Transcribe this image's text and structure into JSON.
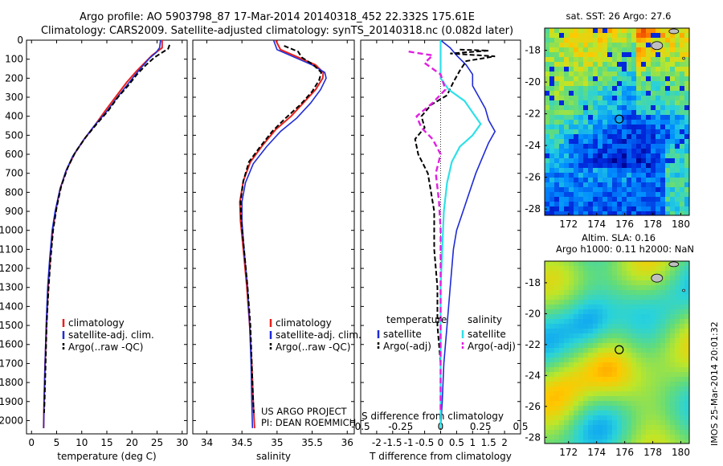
{
  "header": {
    "line1": "Argo profile: AO 5903798_87 17-Mar-2014 20140318_452 22.332S 175.61E",
    "line2": "Climatology: CARS2009. Satellite-adjusted climatology: synTS_20140318.nc (0.082d later)"
  },
  "credit": {
    "line1": "US ARGO PROJECT",
    "line2": "PI: DEAN ROEMMICH"
  },
  "side_stamp": "IMOS 25-Mar-2014 20:01:32",
  "colors": {
    "climatology": "#e8201c",
    "satellite": "#1f2bd6",
    "argo": "#000000",
    "sat_salinity": "#2ee0e8",
    "argo_adj_sal": "#e020e0"
  },
  "chart_data": [
    {
      "id": "temperature",
      "type": "line",
      "xlabel": "temperature (deg C)",
      "ylabel": "",
      "xlim": [
        -1,
        31
      ],
      "ylim": [
        2070,
        0
      ],
      "xticks": [
        0,
        5,
        10,
        15,
        20,
        25,
        30
      ],
      "yticks": [
        0,
        100,
        200,
        300,
        400,
        500,
        600,
        700,
        800,
        900,
        1000,
        1100,
        1200,
        1300,
        1400,
        1500,
        1600,
        1700,
        1800,
        1900,
        2000
      ],
      "legend": [
        "climatology",
        "satellite-adj. clim.",
        "Argo(..raw -QC)"
      ],
      "series": [
        {
          "name": "climatology",
          "pts": [
            [
              26,
              0
            ],
            [
              26,
              40
            ],
            [
              25,
              60
            ],
            [
              24,
              80
            ],
            [
              22.5,
              120
            ],
            [
              21,
              160
            ],
            [
              19,
              220
            ],
            [
              17,
              290
            ],
            [
              15,
              360
            ],
            [
              12.8,
              440
            ],
            [
              10.5,
              520
            ],
            [
              8.5,
              600
            ],
            [
              7,
              680
            ],
            [
              5.7,
              780
            ],
            [
              4.8,
              900
            ],
            [
              4.2,
              1000
            ],
            [
              3.7,
              1150
            ],
            [
              3.3,
              1300
            ],
            [
              3,
              1500
            ],
            [
              2.7,
              1700
            ],
            [
              2.5,
              1900
            ],
            [
              2.4,
              2040
            ]
          ]
        },
        {
          "name": "satellite-adj. clim.",
          "pts": [
            [
              25.7,
              0
            ],
            [
              25.5,
              40
            ],
            [
              24.8,
              65
            ],
            [
              23.5,
              95
            ],
            [
              22,
              140
            ],
            [
              20.4,
              190
            ],
            [
              18.6,
              250
            ],
            [
              16.8,
              310
            ],
            [
              14.8,
              380
            ],
            [
              12.5,
              450
            ],
            [
              10.2,
              530
            ],
            [
              8.2,
              610
            ],
            [
              6.8,
              690
            ],
            [
              5.6,
              790
            ],
            [
              4.7,
              900
            ],
            [
              4.1,
              1000
            ],
            [
              3.6,
              1150
            ],
            [
              3.2,
              1300
            ],
            [
              2.9,
              1500
            ],
            [
              2.7,
              1700
            ],
            [
              2.5,
              1900
            ],
            [
              2.4,
              2040
            ]
          ]
        },
        {
          "name": "Argo(..raw -QC)",
          "pts": [
            [
              27.5,
              25
            ],
            [
              27.2,
              45
            ],
            [
              26,
              65
            ],
            [
              24.5,
              90
            ],
            [
              22.8,
              130
            ],
            [
              21,
              180
            ],
            [
              19.2,
              240
            ],
            [
              17.2,
              300
            ],
            [
              15.3,
              370
            ],
            [
              13,
              440
            ],
            [
              10.8,
              510
            ],
            [
              8.7,
              590
            ],
            [
              7.2,
              670
            ],
            [
              5.9,
              770
            ],
            [
              5,
              880
            ],
            [
              4.3,
              1000
            ],
            [
              3.8,
              1150
            ],
            [
              3.4,
              1300
            ],
            [
              3,
              1500
            ],
            [
              2.8,
              1700
            ],
            [
              2.6,
              1900
            ],
            [
              2.5,
              1960
            ]
          ]
        }
      ]
    },
    {
      "id": "salinity",
      "type": "line",
      "xlabel": "salinity",
      "xlim": [
        33.8,
        36.1
      ],
      "ylim": [
        2070,
        0
      ],
      "xticks": [
        34,
        34.5,
        35,
        35.5,
        36
      ],
      "legend": [
        "climatology",
        "satellite-adj. clim.",
        "Argo(..raw -QC)"
      ],
      "series": [
        {
          "name": "climatology",
          "pts": [
            [
              34.98,
              0
            ],
            [
              35.05,
              50
            ],
            [
              35.3,
              90
            ],
            [
              35.55,
              130
            ],
            [
              35.66,
              170
            ],
            [
              35.65,
              200
            ],
            [
              35.55,
              260
            ],
            [
              35.4,
              320
            ],
            [
              35.2,
              400
            ],
            [
              34.98,
              470
            ],
            [
              34.8,
              550
            ],
            [
              34.62,
              640
            ],
            [
              34.52,
              740
            ],
            [
              34.47,
              850
            ],
            [
              34.48,
              950
            ],
            [
              34.52,
              1100
            ],
            [
              34.57,
              1300
            ],
            [
              34.61,
              1500
            ],
            [
              34.64,
              1700
            ],
            [
              34.66,
              1900
            ],
            [
              34.68,
              2040
            ]
          ]
        },
        {
          "name": "satellite-adj. clim.",
          "pts": [
            [
              34.95,
              0
            ],
            [
              35,
              50
            ],
            [
              35.25,
              90
            ],
            [
              35.5,
              130
            ],
            [
              35.68,
              170
            ],
            [
              35.7,
              200
            ],
            [
              35.62,
              260
            ],
            [
              35.48,
              330
            ],
            [
              35.28,
              410
            ],
            [
              35.05,
              480
            ],
            [
              34.85,
              560
            ],
            [
              34.66,
              650
            ],
            [
              34.55,
              750
            ],
            [
              34.5,
              850
            ],
            [
              34.5,
              950
            ],
            [
              34.53,
              1100
            ],
            [
              34.58,
              1300
            ],
            [
              34.61,
              1500
            ],
            [
              34.63,
              1700
            ],
            [
              34.64,
              1900
            ],
            [
              34.65,
              2040
            ]
          ]
        },
        {
          "name": "Argo(..raw -QC)",
          "pts": [
            [
              35.1,
              30
            ],
            [
              35.3,
              60
            ],
            [
              35.35,
              90
            ],
            [
              35.52,
              130
            ],
            [
              35.63,
              170
            ],
            [
              35.6,
              210
            ],
            [
              35.5,
              270
            ],
            [
              35.33,
              340
            ],
            [
              35.12,
              410
            ],
            [
              34.93,
              480
            ],
            [
              34.76,
              560
            ],
            [
              34.6,
              640
            ],
            [
              34.52,
              740
            ],
            [
              34.48,
              850
            ],
            [
              34.49,
              950
            ],
            [
              34.53,
              1100
            ],
            [
              34.58,
              1300
            ],
            [
              34.62,
              1500
            ],
            [
              34.64,
              1700
            ],
            [
              34.66,
              1900
            ],
            [
              34.67,
              1960
            ]
          ]
        }
      ]
    },
    {
      "id": "difference",
      "type": "line",
      "xlabel": "T difference from climatology",
      "top_label": "S difference from climatology",
      "xlim": [
        -2.5,
        2.5
      ],
      "ylim": [
        2070,
        0
      ],
      "xticks": [
        -2,
        -1.5,
        -1,
        -0.5,
        0,
        0.5,
        1,
        1.5,
        2
      ],
      "sticks": [
        -0.5,
        -0.25,
        0,
        0.25,
        0.5
      ],
      "legend_headers": [
        "temperature",
        "salinity"
      ],
      "legend": [
        "satellite",
        "Argo(-adj)",
        "satellite",
        "Argo(-adj)"
      ],
      "series": [
        {
          "name": "temperature satellite",
          "pts": [
            [
              0,
              0
            ],
            [
              0.3,
              40
            ],
            [
              0.5,
              80
            ],
            [
              0.8,
              130
            ],
            [
              1,
              180
            ],
            [
              1,
              240
            ],
            [
              1.2,
              300
            ],
            [
              1.4,
              360
            ],
            [
              1.5,
              420
            ],
            [
              1.7,
              480
            ],
            [
              1.5,
              540
            ],
            [
              1.3,
              620
            ],
            [
              1.1,
              700
            ],
            [
              0.9,
              800
            ],
            [
              0.7,
              900
            ],
            [
              0.5,
              1000
            ],
            [
              0.4,
              1100
            ],
            [
              0.3,
              1300
            ],
            [
              0.2,
              1500
            ],
            [
              0.1,
              1700
            ],
            [
              0.05,
              1900
            ],
            [
              0,
              2040
            ]
          ]
        },
        {
          "name": "temperature Argo(-adj)",
          "pts": [
            [
              0.6,
              50
            ],
            [
              1.5,
              55
            ],
            [
              0.3,
              70
            ],
            [
              1.7,
              85
            ],
            [
              0.8,
              110
            ],
            [
              0.6,
              160
            ],
            [
              0.4,
              220
            ],
            [
              0.2,
              290
            ],
            [
              -0.3,
              340
            ],
            [
              -0.6,
              400
            ],
            [
              -0.5,
              460
            ],
            [
              -0.8,
              520
            ],
            [
              -0.7,
              600
            ],
            [
              -0.4,
              700
            ],
            [
              -0.3,
              800
            ],
            [
              -0.2,
              900
            ],
            [
              -0.2,
              1000
            ],
            [
              -0.2,
              1100
            ],
            [
              -0.1,
              1300
            ],
            [
              -0.1,
              1500
            ],
            [
              0,
              1700
            ],
            [
              0,
              1900
            ],
            [
              0,
              1960
            ]
          ]
        },
        {
          "name": "salinity satellite",
          "pts": [
            [
              0,
              0
            ],
            [
              0,
              100
            ],
            [
              0,
              200
            ],
            [
              0.05,
              260
            ],
            [
              0.15,
              320
            ],
            [
              0.2,
              380
            ],
            [
              0.25,
              440
            ],
            [
              0.2,
              500
            ],
            [
              0.12,
              560
            ],
            [
              0.07,
              640
            ],
            [
              0.04,
              750
            ],
            [
              0.02,
              900
            ],
            [
              0.01,
              1100
            ],
            [
              0,
              1300
            ],
            [
              0,
              1600
            ],
            [
              0,
              1900
            ],
            [
              0,
              2040
            ]
          ]
        },
        {
          "name": "salinity Argo(-adj)",
          "pts": [
            [
              -0.2,
              60
            ],
            [
              -0.05,
              80
            ],
            [
              -0.1,
              120
            ],
            [
              0,
              180
            ],
            [
              0.03,
              260
            ],
            [
              -0.05,
              330
            ],
            [
              -0.15,
              400
            ],
            [
              -0.12,
              460
            ],
            [
              -0.05,
              520
            ],
            [
              0,
              600
            ],
            [
              -0.03,
              700
            ],
            [
              -0.01,
              850
            ],
            [
              0,
              1000
            ],
            [
              0,
              1300
            ],
            [
              0,
              1600
            ],
            [
              0,
              1960
            ]
          ]
        }
      ]
    },
    {
      "id": "sst_map",
      "type": "heatmap",
      "title": "sat. SST: 26 Argo: 27.6",
      "xticks": [
        "172",
        "174",
        "176",
        "178",
        "180"
      ],
      "yticks": [
        "-18",
        "-20",
        "-22",
        "-24",
        "-26",
        "-28"
      ],
      "lon_range": [
        170.3,
        180.6
      ],
      "lat_range": [
        -28.4,
        -16.6
      ],
      "marker": [
        175.61,
        -22.332
      ]
    },
    {
      "id": "sla_map",
      "type": "heatmap",
      "title": "Altim. SLA: 0.16",
      "subtitle": "Argo h1000: 0.11 h2000: NaN",
      "xticks": [
        "172",
        "174",
        "176",
        "178",
        "180"
      ],
      "yticks": [
        "-18",
        "-20",
        "-22",
        "-24",
        "-26",
        "-28"
      ],
      "lon_range": [
        170.3,
        180.6
      ],
      "lat_range": [
        -28.4,
        -16.6
      ],
      "marker": [
        175.61,
        -22.332
      ]
    }
  ]
}
